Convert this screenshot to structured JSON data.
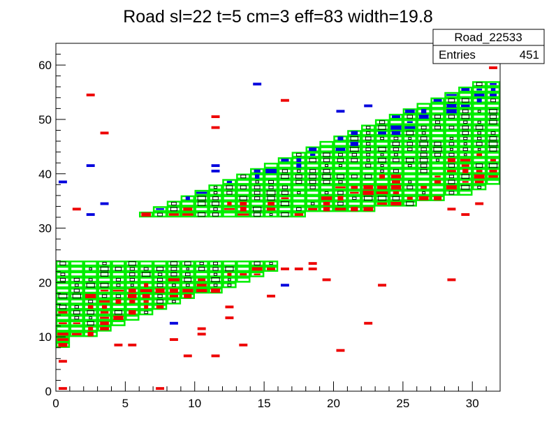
{
  "chart_data": {
    "type": "heatmap",
    "title": "Road sl=22 t=5 cm=3 eff=83 width=19.8",
    "xlabel": "",
    "ylabel": "",
    "xlim": [
      0,
      32
    ],
    "ylim": [
      0,
      64
    ],
    "x_ticks": [
      0,
      5,
      10,
      15,
      20,
      25,
      30
    ],
    "y_ticks": [
      0,
      10,
      20,
      30,
      40,
      50,
      60
    ],
    "grid": false,
    "stats_box": {
      "name": "Road_22533",
      "entries_label": "Entries",
      "entries_value": "451"
    },
    "colors": {
      "road": "#00ee00",
      "red_hits": "#ee0000",
      "blue_hits": "#0000dd",
      "box": "#000000"
    },
    "bands": [
      {
        "series": "lower",
        "ranges": [
          [
            8,
            24
          ],
          [
            10,
            24
          ],
          [
            10,
            24
          ],
          [
            11,
            24
          ],
          [
            12,
            24
          ],
          [
            13,
            24
          ],
          [
            14,
            24
          ],
          [
            15,
            24
          ],
          [
            16,
            24
          ],
          [
            17,
            24
          ],
          [
            18,
            24
          ],
          [
            18,
            24
          ],
          [
            19,
            24
          ],
          [
            20,
            24
          ],
          [
            21,
            24
          ],
          [
            22,
            24
          ]
        ]
      },
      {
        "series": "upper",
        "ranges": [
          [
            32,
            33
          ],
          [
            32,
            34
          ],
          [
            32,
            35
          ],
          [
            32,
            36
          ],
          [
            32,
            37
          ],
          [
            32,
            38
          ],
          [
            32,
            39
          ],
          [
            32,
            40
          ],
          [
            32,
            41
          ],
          [
            32,
            42
          ],
          [
            32,
            43
          ],
          [
            32,
            44
          ],
          [
            33,
            45
          ],
          [
            33,
            46
          ],
          [
            33,
            47
          ],
          [
            33,
            48
          ],
          [
            33,
            49
          ],
          [
            34,
            50
          ],
          [
            34,
            51
          ],
          [
            34,
            52
          ],
          [
            35,
            53
          ],
          [
            35,
            54
          ],
          [
            36,
            55
          ],
          [
            36,
            56
          ],
          [
            37,
            57
          ],
          [
            38,
            57
          ]
        ]
      }
    ]
  }
}
